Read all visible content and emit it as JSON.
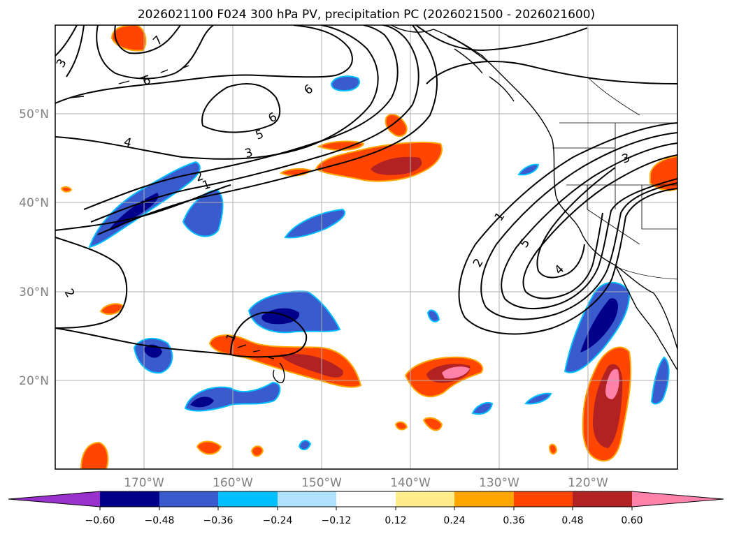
{
  "title": "2026021100 F024 300 hPa PV, precipitation PC (2026021500 - 2026021600)",
  "map": {
    "lat_labels": [
      "50°N",
      "40°N",
      "30°N",
      "20°N"
    ],
    "lon_labels": [
      "170°W",
      "160°W",
      "150°W",
      "140°W",
      "130°W",
      "120°W"
    ],
    "contour_labels": [
      "3",
      "7",
      "6",
      "6",
      "6",
      "5",
      "4",
      "3",
      "2",
      "1",
      "2",
      "1",
      "1",
      "2",
      "5",
      "4",
      "3"
    ]
  },
  "colorbar": {
    "ticks": [
      "−0.60",
      "−0.48",
      "−0.36",
      "−0.24",
      "−0.12",
      "0.12",
      "0.24",
      "0.36",
      "0.48",
      "0.60"
    ],
    "colors": [
      "#9932cc",
      "#00008b",
      "#3a5bcd",
      "#00bfff",
      "#b0e2ff",
      "#ffffff",
      "#ffec8b",
      "#ffa500",
      "#ff4500",
      "#b22222",
      "#ff82ab"
    ]
  }
}
